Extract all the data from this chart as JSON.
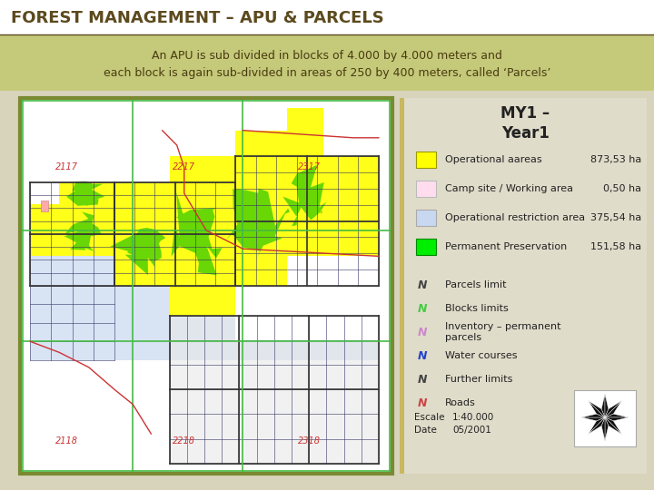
{
  "title": "FOREST MANAGEMENT – APU & PARCELS",
  "title_color": "#5c4a1e",
  "subtitle_line1": "An APU is sub divided in blocks of 4.000 by 4.000 meters and",
  "subtitle_line2": "each block is again sub-divided in areas of 250 by 400 meters, called ‘Parcels’",
  "subtitle_bg": "#c5c97a",
  "subtitle_text_color": "#4a3c10",
  "legend_title": "MY1 –\nYear1",
  "legend_bg": "#e0dcca",
  "outer_bg": "#d8d4bc",
  "map_outer_border": "#7a8a30",
  "legend_items": [
    {
      "color": "#ffff00",
      "border": "#999900",
      "label": "Operational aareas",
      "value": "873,53 ha"
    },
    {
      "color": "#ffddee",
      "border": "#bbbbbb",
      "label": "Camp site / Working area",
      "value": "0,50 ha"
    },
    {
      "color": "#c8d8f0",
      "border": "#aaaaaa",
      "label": "Operational restriction area",
      "value": "375,54 ha"
    },
    {
      "color": "#00ee00",
      "border": "#008800",
      "label": "Permanent Preservation",
      "value": "151,58 ha"
    }
  ],
  "legend_n_items": [
    {
      "color": "#444444",
      "label": "Parcels limit"
    },
    {
      "color": "#44cc44",
      "label": "Blocks limits"
    },
    {
      "color": "#cc88cc",
      "label": "Inventory – permanent\nparcels"
    },
    {
      "color": "#2244cc",
      "label": "Water courses"
    },
    {
      "color": "#444444",
      "label": "Further limits"
    },
    {
      "color": "#cc4444",
      "label": "Roads"
    }
  ],
  "map_border_color": "#7a8a30",
  "divider_color": "#5c4a1e",
  "block_labels_top": [
    "2117",
    "2217",
    "2317"
  ],
  "block_labels_bottom": [
    "2118",
    "2218",
    "2318"
  ]
}
